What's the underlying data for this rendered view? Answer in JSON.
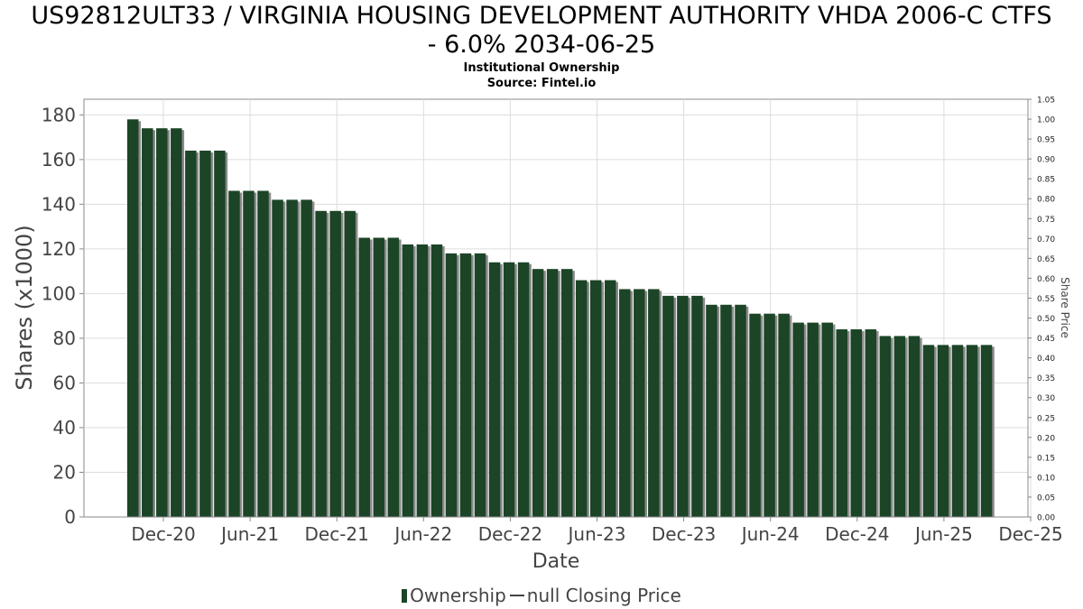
{
  "chart_data": {
    "type": "bar",
    "title_line1": "US92812ULT33 / VIRGINIA HOUSING DEVELOPMENT AUTHORITY VHDA 2006-C CTFS",
    "title_line2": "- 6.0% 2034-06-25",
    "subtitle1": "Institutional Ownership",
    "subtitle2": "Source: Fintel.io",
    "xlabel": "Date",
    "ylabel": "Shares (x1000)",
    "y2label": "Share Price",
    "ylim": [
      0,
      187
    ],
    "y2lim": [
      0,
      1.05
    ],
    "yticks": [
      "0",
      "20",
      "40",
      "60",
      "80",
      "100",
      "120",
      "140",
      "160",
      "180"
    ],
    "y2ticks": [
      "0.00",
      "0.05",
      "0.10",
      "0.15",
      "0.20",
      "0.25",
      "0.30",
      "0.35",
      "0.40",
      "0.45",
      "0.50",
      "0.55",
      "0.60",
      "0.65",
      "0.70",
      "0.75",
      "0.80",
      "0.85",
      "0.90",
      "0.95",
      "1.00",
      "1.05"
    ],
    "xticks": [
      "Dec-20",
      "Jun-21",
      "Dec-21",
      "Jun-22",
      "Dec-22",
      "Jun-23",
      "Dec-23",
      "Jun-24",
      "Dec-24",
      "Jun-25",
      "Dec-25"
    ],
    "grid": true,
    "legend": [
      "Ownership",
      "null Closing Price"
    ],
    "colors": {
      "bar": "#1c4427",
      "bar_shadow": "#8a8a8a",
      "grid": "#dddddd",
      "axis": "#888888"
    },
    "series": [
      {
        "name": "Ownership",
        "values": [
          178,
          174,
          174,
          174,
          164,
          164,
          164,
          146,
          146,
          146,
          142,
          142,
          142,
          137,
          137,
          137,
          125,
          125,
          125,
          122,
          122,
          122,
          118,
          118,
          118,
          114,
          114,
          114,
          111,
          111,
          111,
          106,
          106,
          106,
          102,
          102,
          102,
          99,
          99,
          99,
          95,
          95,
          95,
          91,
          91,
          91,
          87,
          87,
          87,
          84,
          84,
          84,
          81,
          81,
          81,
          77,
          77,
          77,
          77,
          77
        ]
      }
    ]
  }
}
